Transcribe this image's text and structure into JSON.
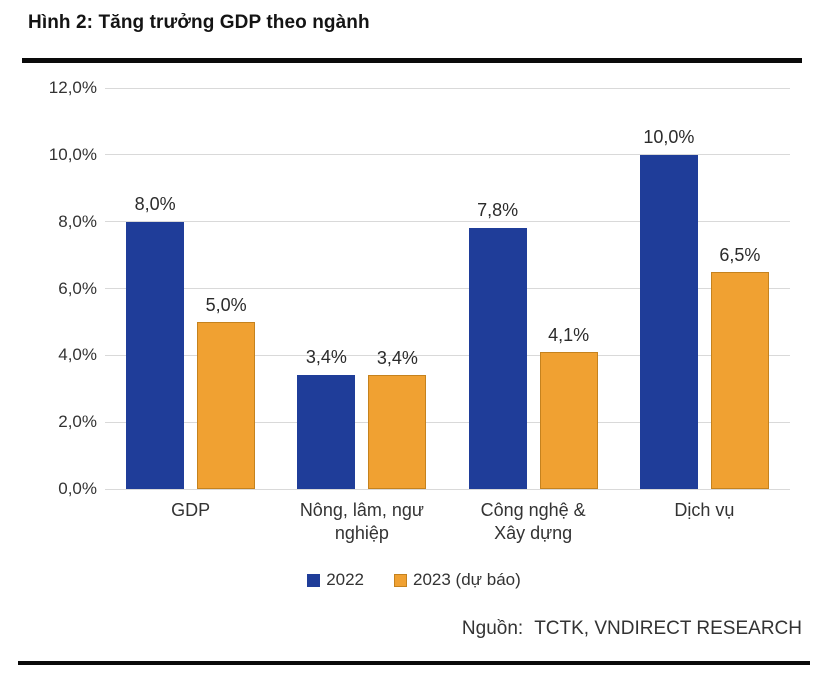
{
  "title": "Hình 2: Tăng trưởng GDP theo ngành",
  "source": {
    "label": "Nguồn:",
    "text": "TCTK, VNDIRECT RESEARCH"
  },
  "colors": {
    "series_2022": "#1F3D99",
    "series_2023": "#F0A132",
    "series_2023_border": "#C5821E",
    "gridline": "#D9D9D9",
    "text": "#333333",
    "rule": "#0A0A0A"
  },
  "chart_data": {
    "type": "bar",
    "title": "Hình 2: Tăng trưởng GDP theo ngành",
    "categories": [
      "GDP",
      "Nông, lâm, ngư\nnghiệp",
      "Công nghệ &\nXây dựng",
      "Dịch vụ"
    ],
    "series": [
      {
        "name": "2022",
        "color_key": "series_2022",
        "values": [
          8.0,
          3.4,
          7.8,
          10.0
        ],
        "labels": [
          "8,0%",
          "3,4%",
          "7,8%",
          "10,0%"
        ]
      },
      {
        "name": "2023 (dự báo)",
        "color_key": "series_2023",
        "values": [
          5.0,
          3.4,
          4.1,
          6.5
        ],
        "labels": [
          "5,0%",
          "3,4%",
          "4,1%",
          "6,5%"
        ]
      }
    ],
    "ylim": [
      0,
      12
    ],
    "yticks": [
      {
        "value": 0,
        "label": "0,0%"
      },
      {
        "value": 2,
        "label": "2,0%"
      },
      {
        "value": 4,
        "label": "4,0%"
      },
      {
        "value": 6,
        "label": "6,0%"
      },
      {
        "value": 8,
        "label": "8,0%"
      },
      {
        "value": 10,
        "label": "10,0%"
      },
      {
        "value": 12,
        "label": "12,0%"
      }
    ],
    "xlabel": "",
    "ylabel": "",
    "grid": true,
    "legend_position": "bottom"
  }
}
